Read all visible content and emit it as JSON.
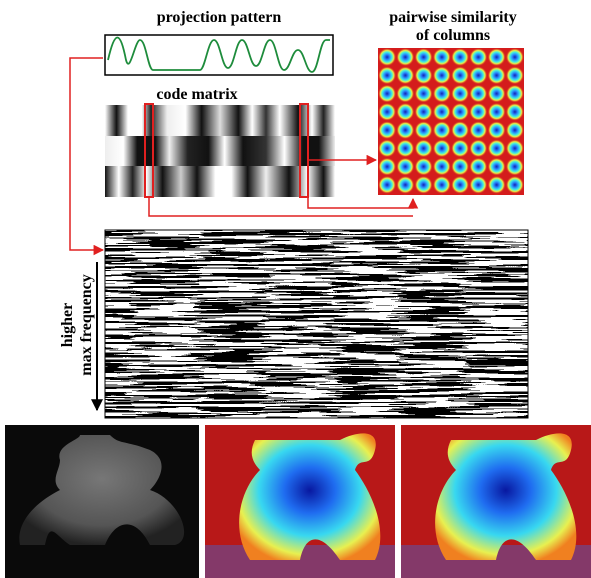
{
  "figure": {
    "projection_pattern": "projection pattern",
    "similarity_title": [
      "pairwise similarity",
      "of columns"
    ],
    "code_matrix": "code matrix",
    "axis_label": [
      "higher",
      "max frequency"
    ]
  }
}
